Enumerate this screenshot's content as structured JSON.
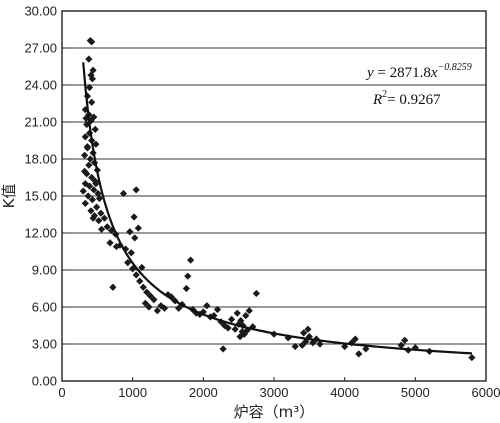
{
  "chart_data": {
    "type": "scatter",
    "title": "",
    "xlabel": "炉容（m³）",
    "ylabel": "K值",
    "xlim": [
      0,
      6000
    ],
    "ylim": [
      0,
      30
    ],
    "x_ticks": [
      "0",
      "1000",
      "2000",
      "3000",
      "4000",
      "5000",
      "6000"
    ],
    "y_ticks": [
      "0.00",
      "3.00",
      "6.00",
      "9.00",
      "12.00",
      "15.00",
      "18.00",
      "21.00",
      "24.00",
      "27.00",
      "30.00"
    ],
    "grid": "horizontal",
    "series": [
      {
        "kind": "points",
        "marker": "diamond",
        "color": "#1a1a1a",
        "points": [
          [
            400,
            27.6
          ],
          [
            420,
            27.5
          ],
          [
            380,
            26.1
          ],
          [
            440,
            25.2
          ],
          [
            410,
            24.8
          ],
          [
            430,
            24.5
          ],
          [
            390,
            23.8
          ],
          [
            360,
            23.1
          ],
          [
            420,
            22.6
          ],
          [
            330,
            22.0
          ],
          [
            380,
            21.6
          ],
          [
            450,
            21.4
          ],
          [
            410,
            21.1
          ],
          [
            350,
            20.8
          ],
          [
            470,
            20.4
          ],
          [
            390,
            20.1
          ],
          [
            330,
            19.8
          ],
          [
            420,
            19.5
          ],
          [
            480,
            19.2
          ],
          [
            360,
            18.9
          ],
          [
            440,
            18.5
          ],
          [
            320,
            18.3
          ],
          [
            400,
            18.0
          ],
          [
            460,
            17.7
          ],
          [
            380,
            17.5
          ],
          [
            500,
            17.1
          ],
          [
            350,
            16.8
          ],
          [
            420,
            16.5
          ],
          [
            470,
            16.2
          ],
          [
            330,
            16.0
          ],
          [
            390,
            15.8
          ],
          [
            450,
            15.5
          ],
          [
            510,
            15.2
          ],
          [
            370,
            15.0
          ],
          [
            430,
            14.7
          ],
          [
            330,
            14.4
          ],
          [
            490,
            14.1
          ],
          [
            410,
            13.8
          ],
          [
            550,
            13.6
          ],
          [
            460,
            13.4
          ],
          [
            600,
            13.2
          ],
          [
            520,
            13.0
          ],
          [
            640,
            12.5
          ],
          [
            700,
            12.2
          ],
          [
            760,
            11.9
          ],
          [
            680,
            11.2
          ],
          [
            820,
            11.0
          ],
          [
            900,
            10.7
          ],
          [
            980,
            10.4
          ],
          [
            1030,
            11.6
          ],
          [
            960,
            12.1
          ],
          [
            1080,
            12.4
          ],
          [
            1020,
            13.3
          ],
          [
            1050,
            15.5
          ],
          [
            870,
            15.2
          ],
          [
            930,
            9.6
          ],
          [
            1000,
            9.1
          ],
          [
            1050,
            8.6
          ],
          [
            1100,
            8.1
          ],
          [
            1150,
            7.6
          ],
          [
            1200,
            7.2
          ],
          [
            1250,
            6.9
          ],
          [
            1300,
            6.6
          ],
          [
            1180,
            6.3
          ],
          [
            1400,
            6.1
          ],
          [
            1450,
            5.9
          ],
          [
            1500,
            7.0
          ],
          [
            1600,
            6.5
          ],
          [
            1700,
            6.2
          ],
          [
            1780,
            8.5
          ],
          [
            1820,
            9.8
          ],
          [
            1760,
            7.5
          ],
          [
            1850,
            5.8
          ],
          [
            1900,
            5.5
          ],
          [
            2000,
            5.6
          ],
          [
            2100,
            5.2
          ],
          [
            2200,
            5.8
          ],
          [
            2250,
            4.8
          ],
          [
            2300,
            4.5
          ],
          [
            2280,
            2.6
          ],
          [
            2400,
            5.0
          ],
          [
            2450,
            4.2
          ],
          [
            2500,
            4.6
          ],
          [
            2520,
            3.6
          ],
          [
            2550,
            4.0
          ],
          [
            2600,
            5.3
          ],
          [
            2650,
            5.7
          ],
          [
            2700,
            4.4
          ],
          [
            2750,
            7.1
          ],
          [
            2580,
            3.8
          ],
          [
            2480,
            5.5
          ],
          [
            2530,
            4.9
          ],
          [
            2620,
            4.1
          ],
          [
            3000,
            3.8
          ],
          [
            3200,
            3.5
          ],
          [
            3400,
            2.9
          ],
          [
            3450,
            3.2
          ],
          [
            3500,
            3.6
          ],
          [
            3550,
            3.1
          ],
          [
            3600,
            3.4
          ],
          [
            3420,
            3.9
          ],
          [
            3480,
            4.2
          ],
          [
            4000,
            2.8
          ],
          [
            4100,
            3.1
          ],
          [
            4150,
            3.4
          ],
          [
            4200,
            2.2
          ],
          [
            4800,
            2.9
          ],
          [
            4850,
            3.3
          ],
          [
            4900,
            2.5
          ],
          [
            5000,
            2.7
          ],
          [
            5200,
            2.4
          ],
          [
            5800,
            1.9
          ],
          [
            300,
            15.4
          ],
          [
            320,
            17.0
          ],
          [
            340,
            21.3
          ],
          [
            360,
            19.0
          ],
          [
            440,
            13.2
          ],
          [
            480,
            16.0
          ],
          [
            530,
            14.8
          ],
          [
            560,
            12.3
          ],
          [
            720,
            7.6
          ],
          [
            770,
            10.9
          ],
          [
            1130,
            9.2
          ],
          [
            1230,
            6.0
          ],
          [
            1350,
            5.7
          ],
          [
            1550,
            6.8
          ],
          [
            1650,
            5.9
          ],
          [
            1950,
            5.4
          ],
          [
            2050,
            6.1
          ],
          [
            2150,
            5.3
          ],
          [
            2350,
            4.3
          ],
          [
            2560,
            4.5
          ],
          [
            3300,
            2.8
          ],
          [
            3650,
            3.0
          ],
          [
            4300,
            2.6
          ]
        ]
      },
      {
        "kind": "fit",
        "label": "y = 2871.8x^-0.8259",
        "color": "#111111",
        "coef": 2871.8,
        "exponent": -0.8259,
        "x_range": [
          300,
          5800
        ]
      }
    ],
    "annotations": {
      "equation_prefix": "y",
      "equation_mid": " = 2871.8",
      "equation_var": "x",
      "equation_exp": "−0.8259",
      "r2_prefix": "R",
      "r2_sup": "2",
      "r2_value": "= 0.9267"
    }
  }
}
